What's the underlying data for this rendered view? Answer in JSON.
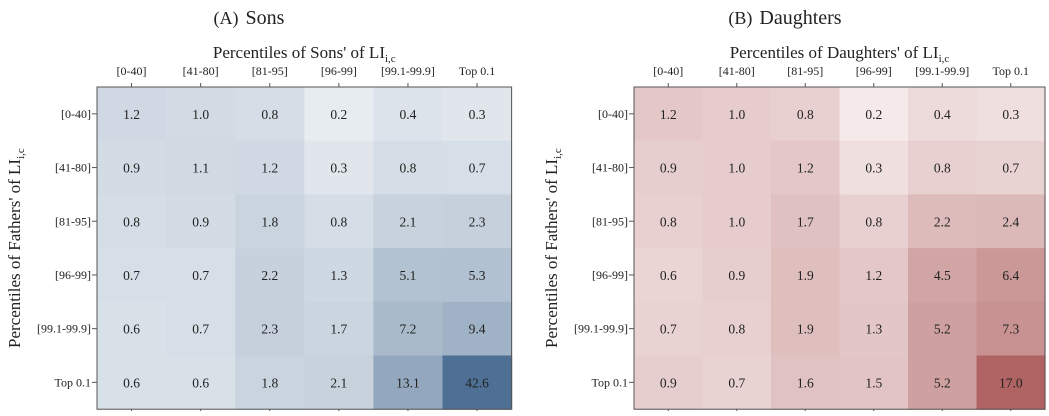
{
  "chart_data": [
    {
      "type": "heatmap",
      "panel_label": "(A)",
      "title": "Sons",
      "xlabel": "Percentiles of Sons' of LI",
      "xlabel_sub": "i,c",
      "ylabel": "Percentiles of Fathers' of LI",
      "ylabel_sub": "i,c",
      "x_categories": [
        "[0-40]",
        "[41-80]",
        "[81-95]",
        "[96-99]",
        "[99.1-99.9]",
        "Top 0.1"
      ],
      "y_categories": [
        "[0-40]",
        "[41-80]",
        "[81-95]",
        "[96-99]",
        "[99.1-99.9]",
        "Top 0.1"
      ],
      "values": [
        [
          "1.2",
          "1.0",
          "0.8",
          "0.2",
          "0.4",
          "0.3"
        ],
        [
          "0.9",
          "1.1",
          "1.2",
          "0.3",
          "0.8",
          "0.7"
        ],
        [
          "0.8",
          "0.9",
          "1.8",
          "0.8",
          "2.1",
          "2.3"
        ],
        [
          "0.7",
          "0.7",
          "2.2",
          "1.3",
          "5.1",
          "5.3"
        ],
        [
          "0.6",
          "0.7",
          "2.3",
          "1.7",
          "7.2",
          "9.4"
        ],
        [
          "0.6",
          "0.6",
          "1.8",
          "2.1",
          "13.1",
          "42.6"
        ]
      ],
      "color_low": "#e7ecf1",
      "color_high": "#4e7094"
    },
    {
      "type": "heatmap",
      "panel_label": "(B)",
      "title": "Daughters",
      "xlabel": "Percentiles of Daughters' of LI",
      "xlabel_sub": "i,c",
      "ylabel": "Percentiles of Fathers' of LI",
      "ylabel_sub": "i,c",
      "x_categories": [
        "[0-40]",
        "[41-80]",
        "[81-95]",
        "[96-99]",
        "[99.1-99.9]",
        "Top 0.1"
      ],
      "y_categories": [
        "[0-40]",
        "[41-80]",
        "[81-95]",
        "[96-99]",
        "[99.1-99.9]",
        "Top 0.1"
      ],
      "values": [
        [
          "1.2",
          "1.0",
          "0.8",
          "0.2",
          "0.4",
          "0.3"
        ],
        [
          "0.9",
          "1.0",
          "1.2",
          "0.3",
          "0.8",
          "0.7"
        ],
        [
          "0.8",
          "1.0",
          "1.7",
          "0.8",
          "2.2",
          "2.4"
        ],
        [
          "0.6",
          "0.9",
          "1.9",
          "1.2",
          "4.5",
          "6.4"
        ],
        [
          "0.7",
          "0.8",
          "1.9",
          "1.3",
          "5.2",
          "7.3"
        ],
        [
          "0.9",
          "0.7",
          "1.6",
          "1.5",
          "5.2",
          "17.0"
        ]
      ],
      "color_low": "#f5e9e9",
      "color_high": "#b06363"
    }
  ]
}
